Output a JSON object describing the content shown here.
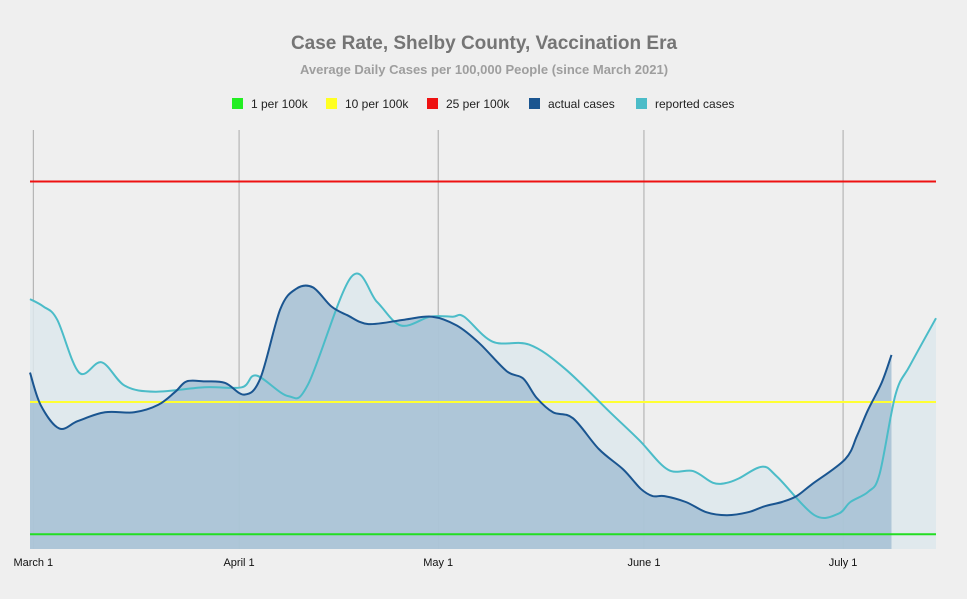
{
  "chart_data": {
    "type": "area",
    "title": "Case Rate, Shelby County, Vaccination Era",
    "subtitle": "Average Daily Cases per 100,000 People (since March 2021)",
    "xlabel": "",
    "ylabel": "",
    "x_unit": "days since March 1, 2021",
    "xlim": [
      -0.5,
      136
    ],
    "ylim": [
      0,
      28.5
    ],
    "grid": "vertical",
    "x_ticks": [
      {
        "label": "March 1",
        "day": 0
      },
      {
        "label": "April 1",
        "day": 31
      },
      {
        "label": "May 1",
        "day": 61
      },
      {
        "label": "June 1",
        "day": 92
      },
      {
        "label": "July 1",
        "day": 122
      }
    ],
    "thresholds": [
      {
        "name": "1 per 100k",
        "value": 1,
        "color": "#22dd22"
      },
      {
        "name": "10 per 100k",
        "value": 10,
        "color": "#ffff33"
      },
      {
        "name": "25 per 100k",
        "value": 25,
        "color": "#ee1111"
      }
    ],
    "legend": [
      {
        "label": "1 per 100k",
        "color": "#22ee22"
      },
      {
        "label": "10 per 100k",
        "color": "#ffff22"
      },
      {
        "label": "25 per 100k",
        "color": "#ee1111"
      },
      {
        "label": "actual cases",
        "color": "#1a5590"
      },
      {
        "label": "reported cases",
        "color": "#4bbcc8"
      }
    ],
    "series": [
      {
        "name": "reported cases",
        "color": "#4bbcc8",
        "fill": "#dde8ec",
        "x": [
          -0.5,
          1.5,
          3.6,
          6.9,
          10.3,
          13.8,
          18.4,
          25.8,
          31.4,
          33.6,
          38.4,
          41.4,
          47.9,
          51.8,
          55.4,
          59.8,
          63.2,
          64.9,
          69.2,
          74.7,
          80,
          86.9,
          91.3,
          95.6,
          99.4,
          102.4,
          104.5,
          106.3,
          109.8,
          112.1,
          117.7,
          121.3,
          123.1,
          125.8,
          127.5,
          129.9,
          132.1,
          136
        ],
        "y": [
          17,
          16.5,
          15.6,
          12,
          12.7,
          11.1,
          10.7,
          11,
          11,
          11.8,
          10.4,
          11.2,
          18.5,
          16.8,
          15.2,
          15.8,
          15.8,
          15.8,
          14.1,
          13.9,
          12.3,
          9.3,
          7.4,
          5.4,
          5.3,
          4.5,
          4.5,
          4.8,
          5.6,
          4.9,
          2.3,
          2.4,
          3.2,
          3.9,
          5.1,
          10.5,
          12.5,
          15.7
        ]
      },
      {
        "name": "actual cases",
        "color": "#1a5590",
        "fill": "#a4bfd3",
        "x": [
          -0.5,
          1.1,
          3.9,
          6.7,
          10.8,
          15.2,
          18.8,
          21.4,
          23.1,
          25.8,
          28.9,
          31.8,
          34.2,
          37.2,
          39.6,
          42.1,
          44.9,
          47.3,
          50.5,
          55.9,
          60.1,
          63.8,
          67.2,
          71.3,
          73.8,
          75.8,
          78.3,
          81.3,
          85.2,
          88.9,
          91.5,
          93.3,
          95.1,
          98.3,
          101.4,
          104.5,
          107.7,
          110.1,
          112.8,
          115,
          117.3,
          122.3,
          124.1,
          125.7,
          127.8,
          129.3
        ],
        "y": [
          12,
          9.8,
          8.2,
          8.7,
          9.3,
          9.3,
          9.8,
          10.7,
          11.4,
          11.4,
          11.3,
          10.5,
          11.6,
          16.3,
          17.7,
          17.8,
          16.5,
          15.9,
          15.3,
          15.6,
          15.8,
          15.2,
          14,
          12.1,
          11.6,
          10.3,
          9.3,
          8.9,
          6.8,
          5.4,
          4.1,
          3.6,
          3.6,
          3.2,
          2.5,
          2.3,
          2.5,
          2.9,
          3.2,
          3.6,
          4.4,
          6.1,
          7.7,
          9.4,
          11.3,
          13.2
        ]
      }
    ]
  }
}
